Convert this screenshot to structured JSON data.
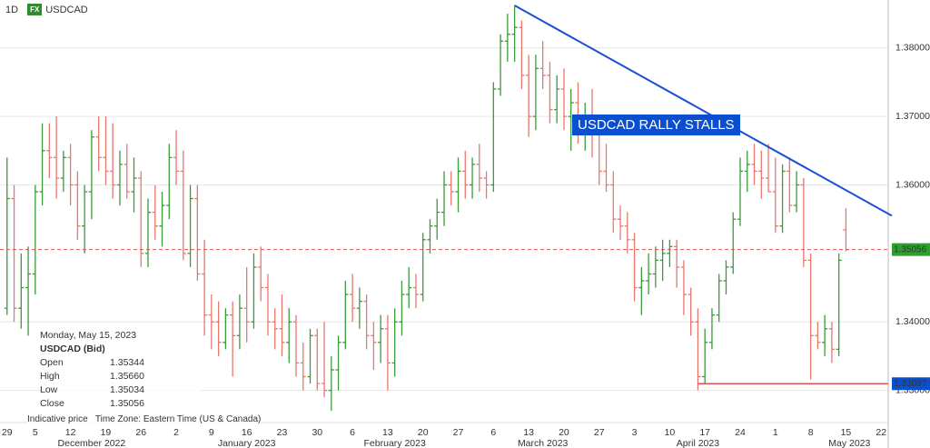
{
  "chart_data": {
    "type": "ohlc",
    "interval": "1D",
    "market": "FX",
    "symbol": "USDCAD",
    "annotation": "USDCAD RALLY STALLS",
    "info": {
      "date": "Monday, May 15, 2023",
      "instrument": "USDCAD (Bid)",
      "rows": [
        [
          "Open",
          "1.35344"
        ],
        [
          "High",
          "1.35660"
        ],
        [
          "Low",
          "1.35034"
        ],
        [
          "Close",
          "1.35056"
        ]
      ],
      "note": "Indicative price   Time Zone: Eastern Time (US & Canada)"
    },
    "up_color": "#3a9a3a",
    "down_color": "#e8776e",
    "ylim": [
      1.3253,
      1.387
    ],
    "yticks": [
      {
        "value": 1.33,
        "label": "1.33000"
      },
      {
        "value": 1.34,
        "label": "1.34000"
      },
      {
        "value": 1.36,
        "label": "1.36000"
      },
      {
        "value": 1.37,
        "label": "1.37000"
      },
      {
        "value": 1.38,
        "label": "1.38000"
      }
    ],
    "xlim": [
      -1,
      125
    ],
    "xticks": [
      {
        "value": 0,
        "label": "29"
      },
      {
        "value": 4,
        "label": "5"
      },
      {
        "value": 9,
        "label": "12"
      },
      {
        "value": 14,
        "label": "19"
      },
      {
        "value": 19,
        "label": "26"
      },
      {
        "value": 24,
        "label": "2"
      },
      {
        "value": 29,
        "label": "9"
      },
      {
        "value": 34,
        "label": "16"
      },
      {
        "value": 39,
        "label": "23"
      },
      {
        "value": 44,
        "label": "30"
      },
      {
        "value": 49,
        "label": "6"
      },
      {
        "value": 54,
        "label": "13"
      },
      {
        "value": 59,
        "label": "20"
      },
      {
        "value": 64,
        "label": "27"
      },
      {
        "value": 69,
        "label": "6"
      },
      {
        "value": 74,
        "label": "13"
      },
      {
        "value": 79,
        "label": "20"
      },
      {
        "value": 84,
        "label": "27"
      },
      {
        "value": 89,
        "label": "3"
      },
      {
        "value": 94,
        "label": "10"
      },
      {
        "value": 99,
        "label": "17"
      },
      {
        "value": 104,
        "label": "24"
      },
      {
        "value": 109,
        "label": "1"
      },
      {
        "value": 114,
        "label": "8"
      },
      {
        "value": 119,
        "label": "15"
      },
      {
        "value": 124,
        "label": "22"
      }
    ],
    "months": [
      {
        "value": 12,
        "label": "December 2022"
      },
      {
        "value": 34,
        "label": "January 2023"
      },
      {
        "value": 55,
        "label": "February 2023"
      },
      {
        "value": 76,
        "label": "March 2023"
      },
      {
        "value": 98,
        "label": "April 2023"
      },
      {
        "value": 119.5,
        "label": "May 2023"
      }
    ],
    "grid": true,
    "last_price": 1.35056,
    "support": {
      "value": 1.33097,
      "x": [
        98,
        125
      ]
    },
    "trendline": {
      "x": [
        72,
        125.5
      ],
      "y": [
        1.3862,
        1.3555
      ]
    },
    "bars": [
      [
        1.342,
        1.364,
        1.341,
        1.358
      ],
      [
        1.358,
        1.36,
        1.34,
        1.342
      ],
      [
        1.342,
        1.35,
        1.339,
        1.345
      ],
      [
        1.345,
        1.351,
        1.338,
        1.347
      ],
      [
        1.347,
        1.36,
        1.344,
        1.359
      ],
      [
        1.359,
        1.369,
        1.357,
        1.365
      ],
      [
        1.365,
        1.369,
        1.361,
        1.364
      ],
      [
        1.364,
        1.37,
        1.358,
        1.361
      ],
      [
        1.361,
        1.365,
        1.359,
        1.364
      ],
      [
        1.364,
        1.366,
        1.357,
        1.36
      ],
      [
        1.36,
        1.362,
        1.352,
        1.354
      ],
      [
        1.354,
        1.36,
        1.35,
        1.359
      ],
      [
        1.359,
        1.368,
        1.355,
        1.367
      ],
      [
        1.367,
        1.37,
        1.362,
        1.364
      ],
      [
        1.364,
        1.37,
        1.36,
        1.362
      ],
      [
        1.362,
        1.369,
        1.358,
        1.36
      ],
      [
        1.36,
        1.365,
        1.357,
        1.363
      ],
      [
        1.363,
        1.366,
        1.358,
        1.359
      ],
      [
        1.359,
        1.364,
        1.356,
        1.361
      ],
      [
        1.361,
        1.362,
        1.348,
        1.35
      ],
      [
        1.35,
        1.358,
        1.348,
        1.356
      ],
      [
        1.356,
        1.36,
        1.352,
        1.354
      ],
      [
        1.354,
        1.359,
        1.351,
        1.357
      ],
      [
        1.357,
        1.366,
        1.355,
        1.364
      ],
      [
        1.364,
        1.368,
        1.36,
        1.362
      ],
      [
        1.362,
        1.365,
        1.349,
        1.35
      ],
      [
        1.35,
        1.36,
        1.348,
        1.358
      ],
      [
        1.358,
        1.36,
        1.346,
        1.347
      ],
      [
        1.347,
        1.352,
        1.338,
        1.341
      ],
      [
        1.341,
        1.344,
        1.336,
        1.34
      ],
      [
        1.34,
        1.343,
        1.335,
        1.337
      ],
      [
        1.337,
        1.342,
        1.336,
        1.341
      ],
      [
        1.341,
        1.343,
        1.332,
        1.338
      ],
      [
        1.338,
        1.344,
        1.336,
        1.342
      ],
      [
        1.342,
        1.348,
        1.337,
        1.34
      ],
      [
        1.34,
        1.35,
        1.339,
        1.348
      ],
      [
        1.348,
        1.351,
        1.343,
        1.345
      ],
      [
        1.345,
        1.347,
        1.338,
        1.34
      ],
      [
        1.34,
        1.342,
        1.336,
        1.339
      ],
      [
        1.339,
        1.344,
        1.335,
        1.337
      ],
      [
        1.337,
        1.342,
        1.334,
        1.34
      ],
      [
        1.34,
        1.341,
        1.332,
        1.334
      ],
      [
        1.334,
        1.337,
        1.33,
        1.332
      ],
      [
        1.332,
        1.339,
        1.331,
        1.338
      ],
      [
        1.338,
        1.339,
        1.33,
        1.331
      ],
      [
        1.331,
        1.34,
        1.329,
        1.33
      ],
      [
        1.33,
        1.335,
        1.327,
        1.333
      ],
      [
        1.333,
        1.338,
        1.33,
        1.337
      ],
      [
        1.337,
        1.346,
        1.336,
        1.344
      ],
      [
        1.344,
        1.347,
        1.34,
        1.342
      ],
      [
        1.342,
        1.345,
        1.339,
        1.343
      ],
      [
        1.343,
        1.344,
        1.336,
        1.338
      ],
      [
        1.338,
        1.34,
        1.333,
        1.337
      ],
      [
        1.337,
        1.341,
        1.334,
        1.339
      ],
      [
        1.339,
        1.341,
        1.33,
        1.334
      ],
      [
        1.334,
        1.342,
        1.332,
        1.34
      ],
      [
        1.34,
        1.346,
        1.338,
        1.344
      ],
      [
        1.344,
        1.348,
        1.342,
        1.345
      ],
      [
        1.345,
        1.347,
        1.342,
        1.344
      ],
      [
        1.344,
        1.353,
        1.343,
        1.352
      ],
      [
        1.352,
        1.355,
        1.35,
        1.354
      ],
      [
        1.354,
        1.358,
        1.352,
        1.356
      ],
      [
        1.356,
        1.362,
        1.354,
        1.36
      ],
      [
        1.36,
        1.362,
        1.357,
        1.359
      ],
      [
        1.359,
        1.364,
        1.356,
        1.362
      ],
      [
        1.362,
        1.365,
        1.358,
        1.36
      ],
      [
        1.36,
        1.364,
        1.358,
        1.363
      ],
      [
        1.363,
        1.366,
        1.359,
        1.361
      ],
      [
        1.361,
        1.362,
        1.358,
        1.36
      ],
      [
        1.36,
        1.375,
        1.359,
        1.374
      ],
      [
        1.374,
        1.382,
        1.373,
        1.381
      ],
      [
        1.381,
        1.385,
        1.378,
        1.382
      ],
      [
        1.382,
        1.3862,
        1.378,
        1.383
      ],
      [
        1.383,
        1.384,
        1.374,
        1.376
      ],
      [
        1.376,
        1.379,
        1.367,
        1.37
      ],
      [
        1.37,
        1.379,
        1.368,
        1.377
      ],
      [
        1.377,
        1.381,
        1.374,
        1.376
      ],
      [
        1.376,
        1.378,
        1.369,
        1.371
      ],
      [
        1.371,
        1.376,
        1.369,
        1.374
      ],
      [
        1.374,
        1.377,
        1.368,
        1.37
      ],
      [
        1.37,
        1.374,
        1.365,
        1.372
      ],
      [
        1.372,
        1.375,
        1.366,
        1.368
      ],
      [
        1.368,
        1.372,
        1.365,
        1.37
      ],
      [
        1.37,
        1.374,
        1.364,
        1.368
      ],
      [
        1.368,
        1.37,
        1.36,
        1.362
      ],
      [
        1.362,
        1.366,
        1.359,
        1.36
      ],
      [
        1.36,
        1.362,
        1.353,
        1.355
      ],
      [
        1.355,
        1.357,
        1.352,
        1.354
      ],
      [
        1.354,
        1.356,
        1.35,
        1.352
      ],
      [
        1.352,
        1.353,
        1.343,
        1.345
      ],
      [
        1.345,
        1.348,
        1.341,
        1.346
      ],
      [
        1.346,
        1.35,
        1.344,
        1.347
      ],
      [
        1.347,
        1.351,
        1.345,
        1.349
      ],
      [
        1.349,
        1.352,
        1.346,
        1.35
      ],
      [
        1.35,
        1.352,
        1.348,
        1.351
      ],
      [
        1.351,
        1.352,
        1.345,
        1.348
      ],
      [
        1.348,
        1.349,
        1.341,
        1.344
      ],
      [
        1.344,
        1.345,
        1.338,
        1.34
      ],
      [
        1.34,
        1.342,
        1.33,
        1.332
      ],
      [
        1.332,
        1.339,
        1.331,
        1.337
      ],
      [
        1.337,
        1.342,
        1.336,
        1.341
      ],
      [
        1.341,
        1.347,
        1.34,
        1.346
      ],
      [
        1.346,
        1.349,
        1.344,
        1.348
      ],
      [
        1.348,
        1.356,
        1.347,
        1.355
      ],
      [
        1.355,
        1.364,
        1.354,
        1.362
      ],
      [
        1.362,
        1.365,
        1.359,
        1.363
      ],
      [
        1.363,
        1.366,
        1.36,
        1.362
      ],
      [
        1.362,
        1.365,
        1.358,
        1.361
      ],
      [
        1.361,
        1.366,
        1.359,
        1.359
      ],
      [
        1.359,
        1.364,
        1.353,
        1.354
      ],
      [
        1.354,
        1.363,
        1.353,
        1.362
      ],
      [
        1.362,
        1.364,
        1.356,
        1.357
      ],
      [
        1.357,
        1.362,
        1.356,
        1.36
      ],
      [
        1.36,
        1.361,
        1.348,
        1.349
      ],
      [
        1.349,
        1.35,
        1.3316,
        1.338
      ],
      [
        1.338,
        1.34,
        1.336,
        1.337
      ],
      [
        1.337,
        1.341,
        1.335,
        1.339
      ],
      [
        1.339,
        1.34,
        1.334,
        1.336
      ],
      [
        1.336,
        1.35,
        1.335,
        1.349
      ],
      [
        1.35344,
        1.3566,
        1.35034,
        1.35056
      ]
    ]
  }
}
